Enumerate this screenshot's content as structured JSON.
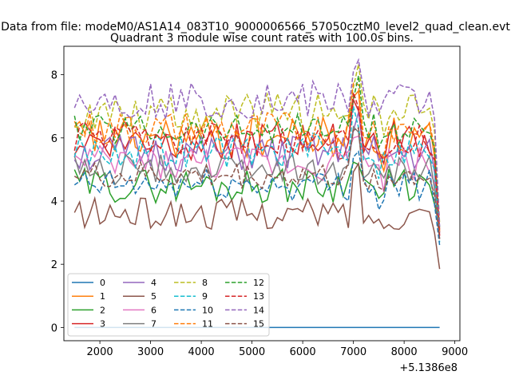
{
  "chart_data": {
    "type": "line",
    "suptitle": "Data from file: modeM0/AS1A14_083T10_9000006566_57050cztM0_level2_quad_clean.evt",
    "title": "Quadrant 3 module wise count rates with 100.0s bins.",
    "xlabel": "",
    "ylabel": "",
    "x_offset_label": "+5.1386e8",
    "xlim": [
      1290,
      9100
    ],
    "ylim": [
      -0.42,
      8.9
    ],
    "xticks": [
      2000,
      3000,
      4000,
      5000,
      6000,
      7000,
      8000,
      9000
    ],
    "xtick_labels": [
      "2000",
      "3000",
      "4000",
      "5000",
      "6000",
      "7000",
      "8000",
      "9000"
    ],
    "yticks": [
      0,
      2,
      4,
      6,
      8
    ],
    "ytick_labels": [
      "0",
      "2",
      "4",
      "6",
      "8"
    ],
    "x_start": 1500,
    "x_step": 100,
    "legend": {
      "location": "lower-left",
      "columns": 4
    },
    "series": [
      {
        "name": "0",
        "color": "#1f77b4",
        "style": "solid",
        "base": 0.0,
        "amp": 0,
        "seed": 0
      },
      {
        "name": "1",
        "color": "#ff7f0e",
        "style": "solid",
        "base": 6.0,
        "amp": 0.7,
        "seed": 11
      },
      {
        "name": "2",
        "color": "#2ca02c",
        "style": "solid",
        "base": 4.5,
        "amp": 0.55,
        "seed": 22
      },
      {
        "name": "3",
        "color": "#d62728",
        "style": "solid",
        "base": 5.9,
        "amp": 0.6,
        "seed": 33
      },
      {
        "name": "4",
        "color": "#9467bd",
        "style": "solid",
        "base": 5.5,
        "amp": 0.6,
        "seed": 44
      },
      {
        "name": "5",
        "color": "#8c564b",
        "style": "solid",
        "base": 3.6,
        "amp": 0.5,
        "seed": 55
      },
      {
        "name": "6",
        "color": "#e377c2",
        "style": "solid",
        "base": 5.2,
        "amp": 0.55,
        "seed": 66
      },
      {
        "name": "7",
        "color": "#7f7f7f",
        "style": "solid",
        "base": 5.0,
        "amp": 0.5,
        "seed": 77
      },
      {
        "name": "8",
        "color": "#bcbd22",
        "style": "dashed",
        "base": 6.8,
        "amp": 0.6,
        "seed": 88
      },
      {
        "name": "9",
        "color": "#17becf",
        "style": "dashed",
        "base": 5.6,
        "amp": 0.55,
        "seed": 99
      },
      {
        "name": "10",
        "color": "#1f77b4",
        "style": "dashed",
        "base": 4.5,
        "amp": 0.5,
        "seed": 110
      },
      {
        "name": "11",
        "color": "#ff7f0e",
        "style": "dashed",
        "base": 6.3,
        "amp": 0.55,
        "seed": 121
      },
      {
        "name": "12",
        "color": "#2ca02c",
        "style": "dashed",
        "base": 6.3,
        "amp": 0.5,
        "seed": 132
      },
      {
        "name": "13",
        "color": "#d62728",
        "style": "dashed",
        "base": 6.0,
        "amp": 0.5,
        "seed": 143
      },
      {
        "name": "14",
        "color": "#9467bd",
        "style": "dashed",
        "base": 7.2,
        "amp": 0.6,
        "seed": 154
      },
      {
        "name": "15",
        "color": "#8c564b",
        "style": "dashed",
        "base": 4.8,
        "amp": 0.45,
        "seed": 165
      }
    ],
    "n_points": 73,
    "last_values": [
      0,
      3.0,
      3.2,
      3.1,
      3.0,
      1.85,
      2.9,
      2.8,
      3.3,
      2.7,
      2.6,
      3.0,
      3.1,
      2.9,
      3.2,
      2.8
    ]
  }
}
